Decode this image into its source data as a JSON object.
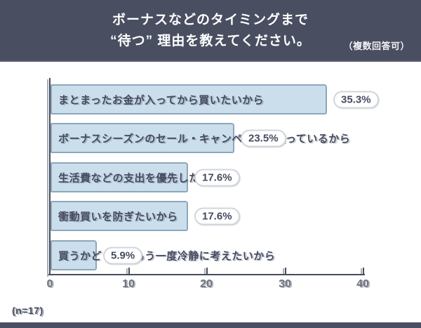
{
  "header": {
    "title_line1": "ボーナスなどのタイミングまで",
    "title_line2": "“待つ” 理由を教えてください。",
    "note": "（複数回答可）"
  },
  "colors": {
    "header_background": "#494e61",
    "bar_fill": "#cbdeec",
    "bar_border": "#8ea6ba",
    "text_dark": "#454b60",
    "tick_gray": "#6d7380",
    "footer_strip": "#494e61"
  },
  "chart_data": {
    "type": "bar",
    "orientation": "horizontal",
    "style": "sketchy-xkcd",
    "title": "ボーナスなどのタイミングまで “待つ” 理由を教えてください。",
    "subtitle": "（複数回答可）",
    "categories": [
      "まとまったお金が入ってから買いたいから",
      "ボーナスシーズンのセール・キャンペーンを狙っているから",
      "生活費などの支出を優先したいから",
      "衝動買いを防ぎたいから",
      "買うかどうか、もう一度冷静に考えたいから"
    ],
    "values": [
      35.3,
      23.5,
      17.6,
      17.6,
      5.9
    ],
    "value_labels": [
      "35.3%",
      "23.5%",
      "17.6%",
      "17.6%",
      "5.9%"
    ],
    "unit": "%",
    "xlabel": "",
    "ylabel": "",
    "xlim": [
      0,
      40
    ],
    "xticks": [
      0,
      10,
      20,
      30,
      40
    ],
    "grid": false,
    "legend": false,
    "sample_note": "(n=17)"
  }
}
